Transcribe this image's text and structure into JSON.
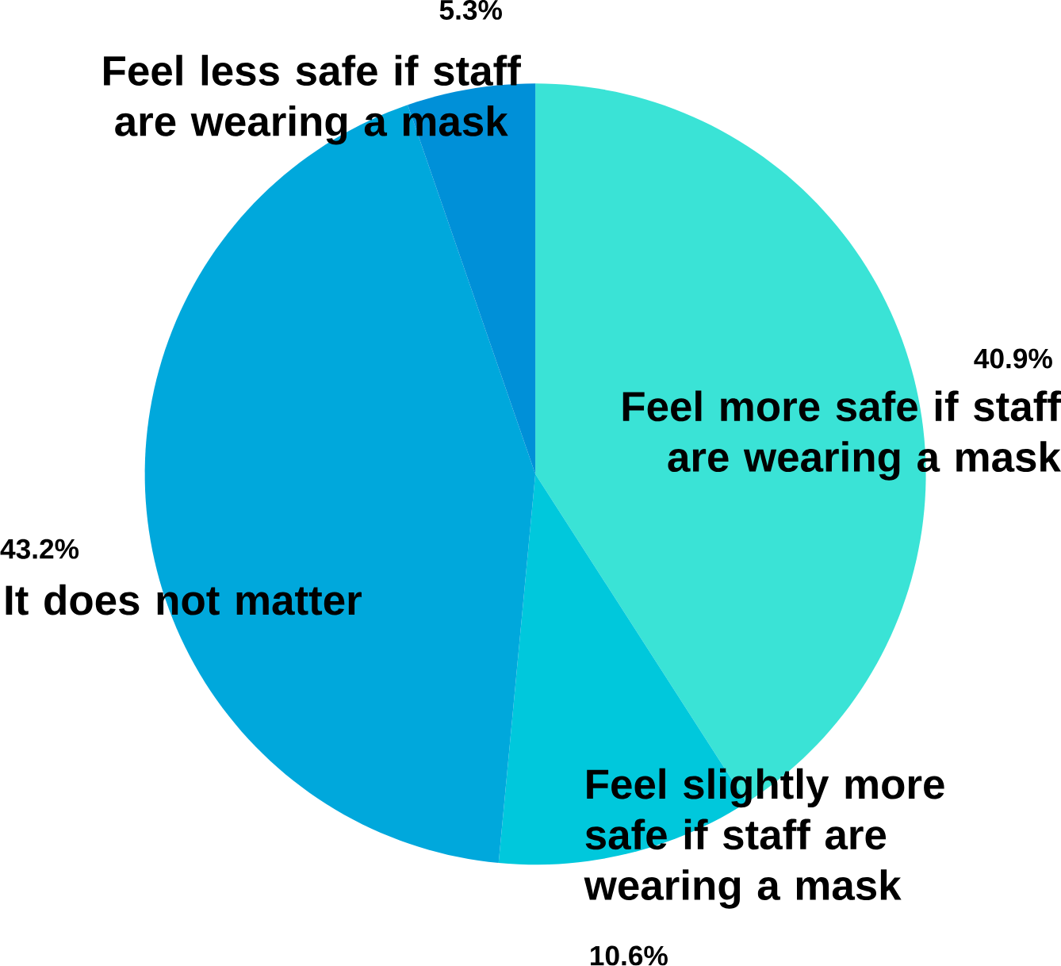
{
  "chart_data": {
    "type": "pie",
    "categories": [
      "Feel more safe if staff are wearing a mask",
      "Feel slightly more safe if staff are wearing a mask",
      "It does not matter",
      "Feel less safe if staff are wearing a mask"
    ],
    "values": [
      40.9,
      10.6,
      43.2,
      5.3
    ],
    "value_labels": [
      "40.9%",
      "10.6%",
      "43.2%",
      "5.3%"
    ],
    "colors": [
      "#3ae3d6",
      "#00c8dc",
      "#00a8dc",
      "#0090d8"
    ]
  }
}
